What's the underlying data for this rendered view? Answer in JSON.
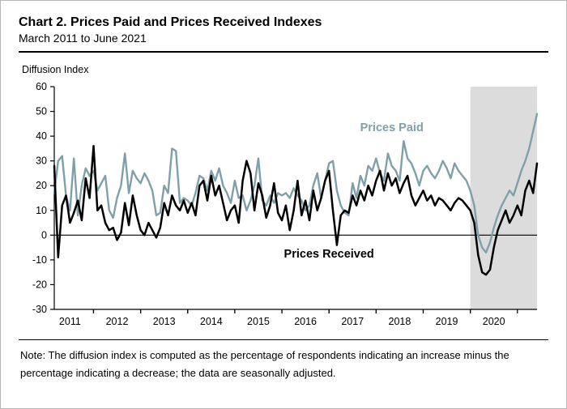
{
  "header": {
    "title": "Chart 2. Prices Paid and Prices Received Indexes",
    "subtitle": "March 2011 to June 2021"
  },
  "axis_label": "Diffusion Index",
  "note": {
    "line1": "Note:  The diffusion index is computed as the percentage of respondents indicating an increase minus the",
    "line2": "percentage indicating a decrease; the data are seasonally adjusted."
  },
  "chart_data": {
    "type": "line",
    "title": "Chart 2. Prices Paid and Prices Received Indexes",
    "subtitle": "March 2011 to June 2021",
    "ylabel": "Diffusion Index",
    "ylim": [
      -30,
      60
    ],
    "y_ticks": [
      60,
      50,
      40,
      30,
      20,
      10,
      0,
      -10,
      -20,
      -30
    ],
    "x_start": "2011-03",
    "x_end": "2021-06",
    "x_year_labels": [
      2011,
      2012,
      2013,
      2014,
      2015,
      2016,
      2017,
      2018,
      2019,
      2020
    ],
    "grid": false,
    "zero_line": true,
    "shading": {
      "start": "2020-01",
      "end": "2021-06",
      "color": "#dcdcdc"
    },
    "annotations": [
      {
        "text": "Prices Paid",
        "x_index": 86,
        "y_value": 42,
        "color": "#7fa0a9"
      },
      {
        "text": "Prices Received",
        "x_index": 70,
        "y_value": -9,
        "color": "#000000"
      }
    ],
    "series": [
      {
        "name": "Prices Paid",
        "color": "#7fa0a9",
        "values": [
          17,
          30,
          32,
          16,
          10,
          31,
          8,
          20,
          27,
          24,
          26,
          18,
          21,
          24,
          10,
          7,
          15,
          20,
          33,
          17,
          26,
          23,
          21,
          25,
          22,
          18,
          8,
          9,
          20,
          17,
          35,
          34,
          13,
          15,
          14,
          12,
          17,
          24,
          23,
          18,
          26,
          22,
          27,
          20,
          17,
          13,
          22,
          15,
          16,
          10,
          14,
          20,
          31,
          14,
          12,
          16,
          13,
          17,
          16,
          17,
          15,
          19,
          16,
          14,
          10,
          12,
          20,
          25,
          15,
          22,
          29,
          30,
          18,
          12,
          9,
          8,
          21,
          15,
          24,
          20,
          28,
          26,
          31,
          25,
          22,
          33,
          28,
          26,
          22,
          38,
          31,
          29,
          25,
          20,
          26,
          28,
          25,
          23,
          26,
          30,
          27,
          23,
          29,
          26,
          24,
          22,
          18,
          12,
          0,
          -5,
          -7,
          -3,
          3,
          8,
          12,
          15,
          18,
          16,
          21,
          26,
          30,
          35,
          42,
          49
        ]
      },
      {
        "name": "Prices Received",
        "color": "#000000",
        "values": [
          28,
          -9,
          12,
          16,
          5,
          9,
          14,
          6,
          23,
          15,
          36,
          10,
          12,
          5,
          2,
          3,
          -2,
          1,
          13,
          4,
          16,
          8,
          2,
          0,
          5,
          2,
          -1,
          3,
          13,
          8,
          16,
          12,
          10,
          14,
          9,
          13,
          8,
          20,
          22,
          14,
          24,
          16,
          20,
          13,
          6,
          10,
          12,
          5,
          22,
          30,
          25,
          10,
          21,
          16,
          7,
          12,
          21,
          9,
          6,
          12,
          2,
          10,
          22,
          8,
          14,
          6,
          18,
          10,
          15,
          22,
          26,
          10,
          -4,
          8,
          10,
          9,
          16,
          12,
          18,
          14,
          20,
          16,
          22,
          26,
          18,
          25,
          20,
          23,
          17,
          21,
          24,
          16,
          12,
          15,
          18,
          14,
          16,
          12,
          15,
          14,
          12,
          10,
          13,
          15,
          14,
          12,
          10,
          5,
          -8,
          -15,
          -16,
          -14,
          -5,
          2,
          6,
          10,
          5,
          8,
          12,
          8,
          18,
          22,
          17,
          29
        ]
      }
    ]
  }
}
